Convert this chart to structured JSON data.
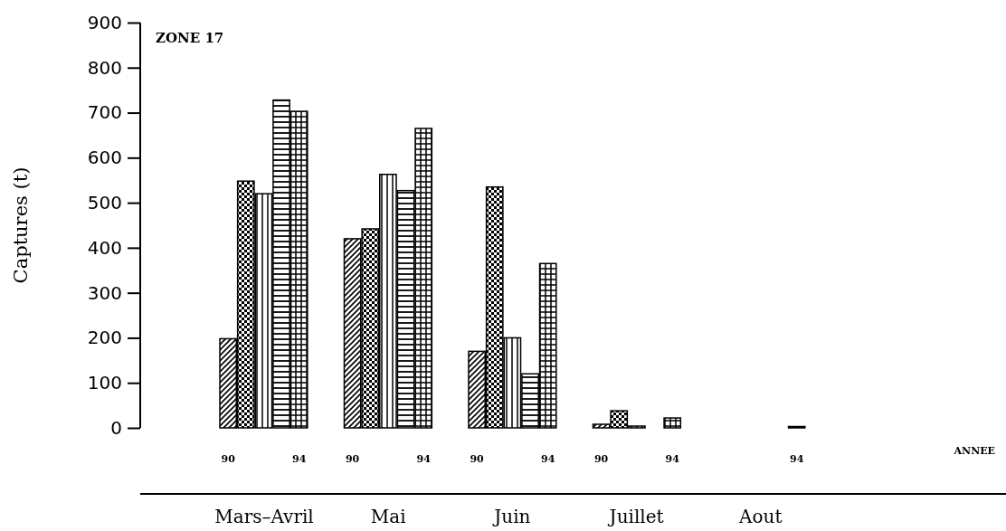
{
  "chart_data": {
    "type": "bar",
    "title": "ZONE 17",
    "ylabel": "Captures (t)",
    "categories": [
      "90",
      null,
      null,
      null,
      "94",
      null,
      null,
      "90",
      null,
      null,
      null,
      "94",
      null,
      null,
      "90",
      null,
      null,
      null,
      "94",
      null,
      null,
      "90",
      null,
      null,
      null,
      "94",
      null,
      null,
      null,
      null,
      null,
      null,
      "94"
    ],
    "values": [
      198,
      548,
      520,
      728,
      703,
      null,
      null,
      420,
      442,
      563,
      527,
      665,
      null,
      null,
      170,
      535,
      200,
      120,
      365,
      null,
      null,
      8,
      38,
      4,
      null,
      22,
      null,
      null,
      null,
      null,
      null,
      null,
      3
    ],
    "colors": [
      "#000000",
      "#000000",
      "#000000",
      "#000000",
      "#000000",
      "#000000",
      "#000000",
      "#000000",
      "#000000",
      "#000000",
      "#000000",
      "#000000",
      "#000000",
      "#000000",
      "#000000",
      "#000000",
      "#000000",
      "#000000",
      "#000000",
      "#000000",
      "#000000",
      "#000000",
      "#000000",
      "#000000",
      "#000000",
      "#000000",
      "#000000",
      "#000000",
      "#000000",
      "#000000",
      "#000000",
      "#000000",
      "#000000"
    ],
    "annotations": [
      "Mars–Avril",
      "Mai",
      "Juin",
      "Juillet",
      "Aout",
      "ANNEE"
    ],
    "ylim": [
      0,
      900
    ],
    "yticks": [
      0,
      100,
      200,
      300,
      400,
      500,
      600,
      700,
      800,
      900
    ],
    "grid": false
  }
}
